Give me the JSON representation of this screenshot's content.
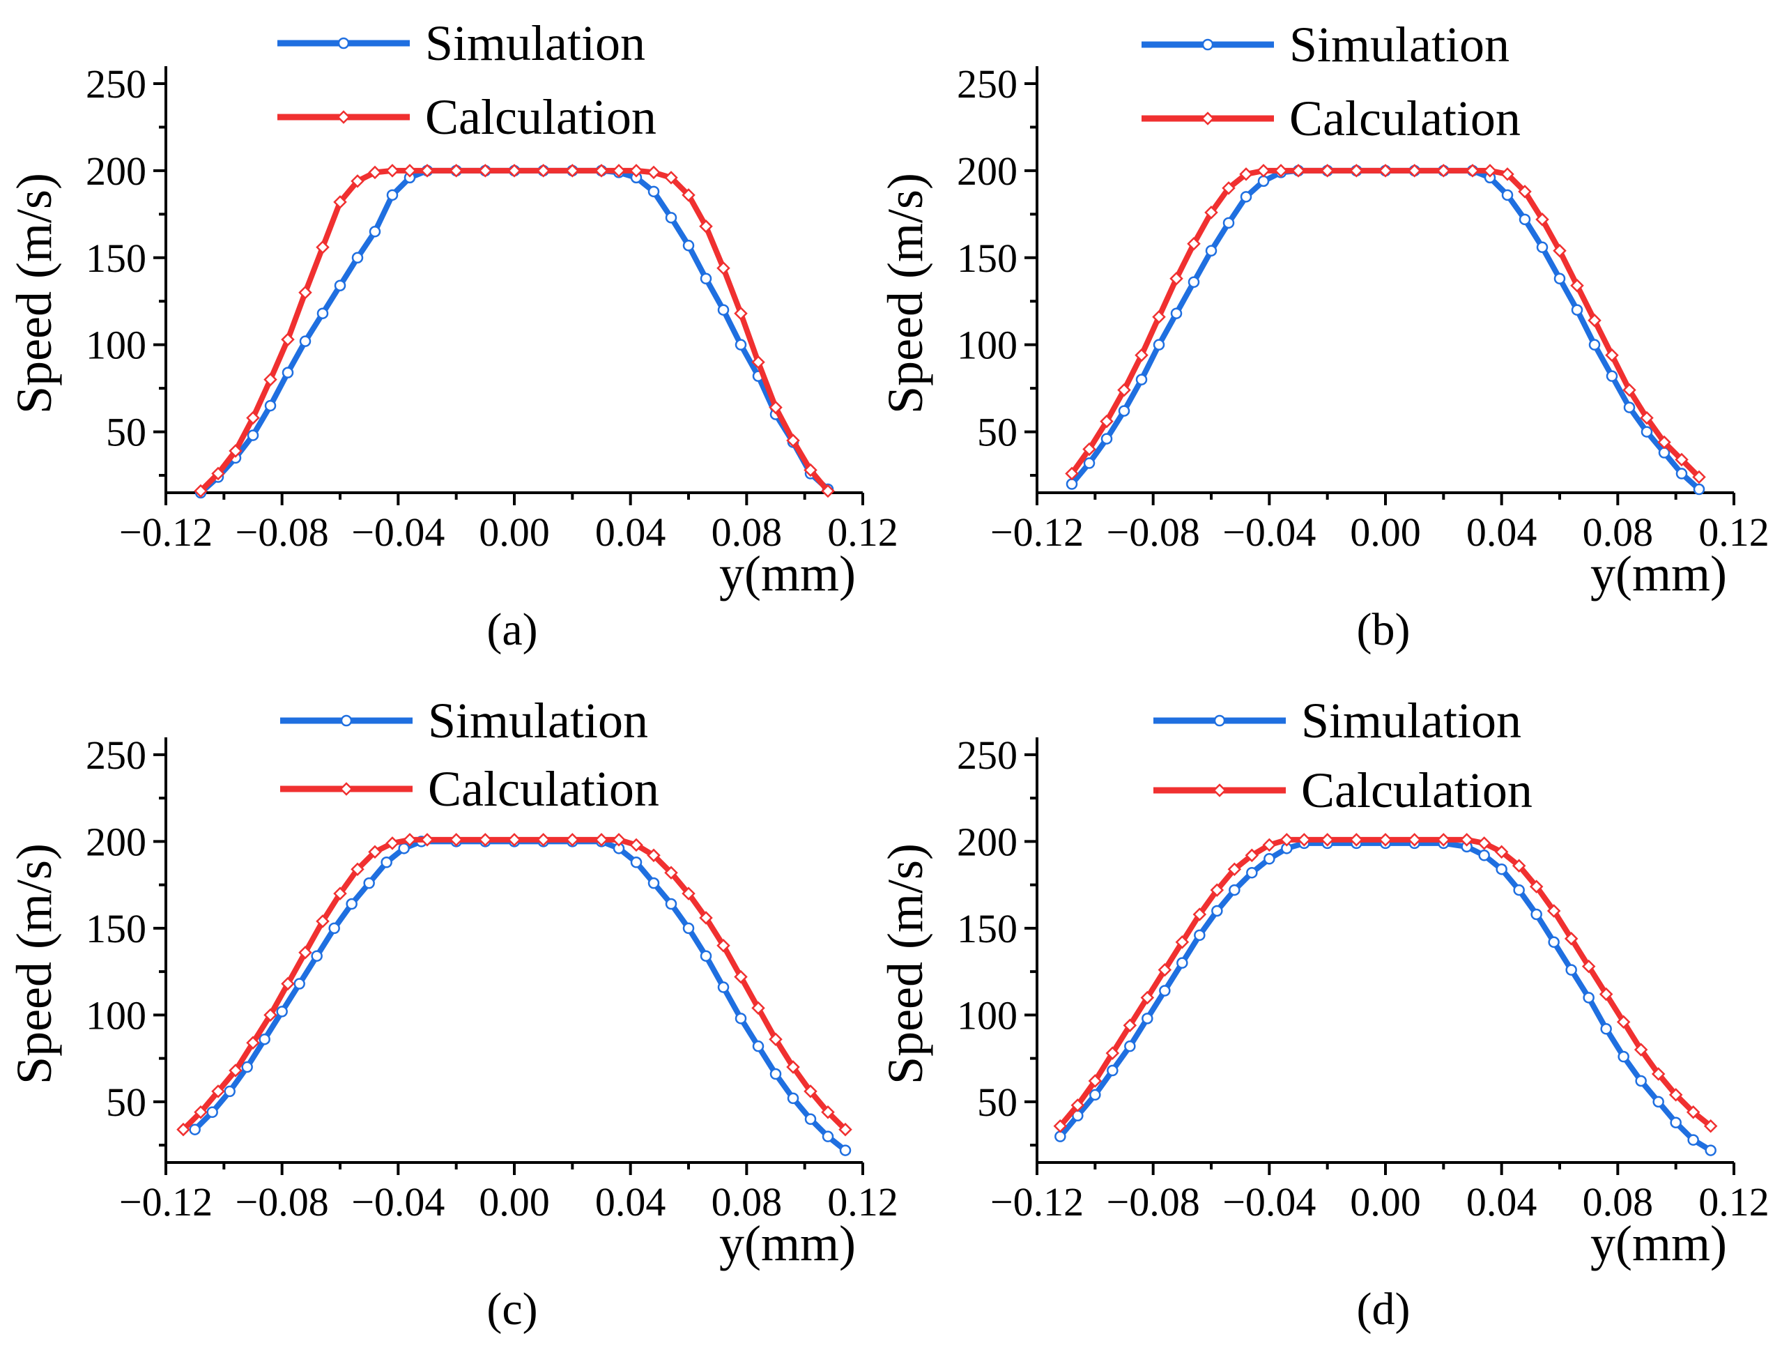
{
  "chart_data": [
    {
      "id": "a",
      "type": "line",
      "caption": "(a)",
      "xlabel": "y(mm)",
      "ylabel": "Speed (m/s)",
      "xlim": [
        -0.12,
        0.12
      ],
      "ylim": [
        15,
        260
      ],
      "xticks": [
        "-0.12",
        "-0.08",
        "-0.04",
        "0.00",
        "0.04",
        "0.08",
        "0.12"
      ],
      "xtick_values": [
        -0.12,
        -0.08,
        -0.04,
        0.0,
        0.04,
        0.08,
        0.12
      ],
      "yticks": [
        "50",
        "100",
        "150",
        "200",
        "250"
      ],
      "ytick_values": [
        50,
        100,
        150,
        200,
        250
      ],
      "series": [
        {
          "name": "Simulation",
          "color": "#1f6fe0",
          "marker": "circle",
          "x": [
            -0.108,
            -0.102,
            -0.096,
            -0.09,
            -0.084,
            -0.078,
            -0.072,
            -0.066,
            -0.06,
            -0.054,
            -0.048,
            -0.042,
            -0.036,
            -0.03,
            -0.02,
            -0.01,
            0.0,
            0.01,
            0.02,
            0.03,
            0.036,
            0.042,
            0.048,
            0.054,
            0.06,
            0.066,
            0.072,
            0.078,
            0.084,
            0.09,
            0.096,
            0.102,
            0.108
          ],
          "y": [
            15,
            24,
            35,
            48,
            65,
            84,
            102,
            118,
            134,
            150,
            165,
            186,
            196,
            200,
            200,
            200,
            200,
            200,
            200,
            200,
            199,
            196,
            188,
            173,
            157,
            138,
            120,
            100,
            82,
            60,
            44,
            26,
            17
          ]
        },
        {
          "name": "Calculation",
          "color": "#f03030",
          "marker": "diamond",
          "x": [
            -0.108,
            -0.102,
            -0.096,
            -0.09,
            -0.084,
            -0.078,
            -0.072,
            -0.066,
            -0.06,
            -0.054,
            -0.048,
            -0.042,
            -0.036,
            -0.03,
            -0.02,
            -0.01,
            0.0,
            0.01,
            0.02,
            0.03,
            0.036,
            0.042,
            0.048,
            0.054,
            0.06,
            0.066,
            0.072,
            0.078,
            0.084,
            0.09,
            0.096,
            0.102,
            0.108
          ],
          "y": [
            16,
            26,
            39,
            58,
            80,
            103,
            130,
            156,
            182,
            194,
            199,
            200,
            200,
            200,
            200,
            200,
            200,
            200,
            200,
            200,
            200,
            200,
            199,
            196,
            186,
            168,
            144,
            118,
            90,
            64,
            45,
            28,
            16
          ]
        }
      ]
    },
    {
      "id": "b",
      "type": "line",
      "caption": "(b)",
      "xlabel": "y(mm)",
      "ylabel": "Speed (m/s)",
      "xlim": [
        -0.12,
        0.12
      ],
      "ylim": [
        15,
        260
      ],
      "xticks": [
        "-0.12",
        "-0.08",
        "-0.04",
        "0.00",
        "0.04",
        "0.08",
        "0.12"
      ],
      "xtick_values": [
        -0.12,
        -0.08,
        -0.04,
        0.0,
        0.04,
        0.08,
        0.12
      ],
      "yticks": [
        "50",
        "100",
        "150",
        "200",
        "250"
      ],
      "ytick_values": [
        50,
        100,
        150,
        200,
        250
      ],
      "series": [
        {
          "name": "Simulation",
          "color": "#1f6fe0",
          "marker": "circle",
          "x": [
            -0.108,
            -0.102,
            -0.096,
            -0.09,
            -0.084,
            -0.078,
            -0.072,
            -0.066,
            -0.06,
            -0.054,
            -0.048,
            -0.042,
            -0.036,
            -0.03,
            -0.02,
            -0.01,
            0.0,
            0.01,
            0.02,
            0.03,
            0.036,
            0.042,
            0.048,
            0.054,
            0.06,
            0.066,
            0.072,
            0.078,
            0.084,
            0.09,
            0.096,
            0.102,
            0.108
          ],
          "y": [
            20,
            32,
            46,
            62,
            80,
            100,
            118,
            136,
            154,
            170,
            185,
            194,
            199,
            200,
            200,
            200,
            200,
            200,
            200,
            200,
            196,
            186,
            172,
            156,
            138,
            120,
            100,
            82,
            64,
            50,
            38,
            26,
            17
          ]
        },
        {
          "name": "Calculation",
          "color": "#f03030",
          "marker": "diamond",
          "x": [
            -0.108,
            -0.102,
            -0.096,
            -0.09,
            -0.084,
            -0.078,
            -0.072,
            -0.066,
            -0.06,
            -0.054,
            -0.048,
            -0.042,
            -0.036,
            -0.03,
            -0.02,
            -0.01,
            0.0,
            0.01,
            0.02,
            0.03,
            0.036,
            0.042,
            0.048,
            0.054,
            0.06,
            0.066,
            0.072,
            0.078,
            0.084,
            0.09,
            0.096,
            0.102,
            0.108
          ],
          "y": [
            26,
            40,
            56,
            74,
            94,
            116,
            138,
            158,
            176,
            190,
            198,
            200,
            200,
            200,
            200,
            200,
            200,
            200,
            200,
            200,
            200,
            198,
            188,
            172,
            154,
            134,
            114,
            94,
            74,
            58,
            44,
            34,
            24
          ]
        }
      ]
    },
    {
      "id": "c",
      "type": "line",
      "caption": "(c)",
      "xlabel": "y(mm)",
      "ylabel": "Speed (m/s)",
      "xlim": [
        -0.12,
        0.12
      ],
      "ylim": [
        15,
        260
      ],
      "xticks": [
        "-0.12",
        "-0.08",
        "-0.04",
        "0.00",
        "0.04",
        "0.08",
        "0.12"
      ],
      "xtick_values": [
        -0.12,
        -0.08,
        -0.04,
        0.0,
        0.04,
        0.08,
        0.12
      ],
      "yticks": [
        "50",
        "100",
        "150",
        "200",
        "250"
      ],
      "ytick_values": [
        50,
        100,
        150,
        200,
        250
      ],
      "series": [
        {
          "name": "Simulation",
          "color": "#1f6fe0",
          "marker": "circle",
          "x": [
            -0.11,
            -0.104,
            -0.098,
            -0.092,
            -0.086,
            -0.08,
            -0.074,
            -0.068,
            -0.062,
            -0.056,
            -0.05,
            -0.044,
            -0.038,
            -0.032,
            -0.02,
            -0.01,
            0.0,
            0.01,
            0.02,
            0.03,
            0.036,
            0.042,
            0.048,
            0.054,
            0.06,
            0.066,
            0.072,
            0.078,
            0.084,
            0.09,
            0.096,
            0.102,
            0.108,
            0.114
          ],
          "y": [
            34,
            44,
            56,
            70,
            86,
            102,
            118,
            134,
            150,
            164,
            176,
            188,
            196,
            200,
            200,
            200,
            200,
            200,
            200,
            200,
            196,
            188,
            176,
            164,
            150,
            134,
            116,
            98,
            82,
            66,
            52,
            40,
            30,
            22
          ]
        },
        {
          "name": "Calculation",
          "color": "#f03030",
          "marker": "diamond",
          "x": [
            -0.114,
            -0.108,
            -0.102,
            -0.096,
            -0.09,
            -0.084,
            -0.078,
            -0.072,
            -0.066,
            -0.06,
            -0.054,
            -0.048,
            -0.042,
            -0.036,
            -0.03,
            -0.02,
            -0.01,
            0.0,
            0.01,
            0.02,
            0.03,
            0.036,
            0.042,
            0.048,
            0.054,
            0.06,
            0.066,
            0.072,
            0.078,
            0.084,
            0.09,
            0.096,
            0.102,
            0.108,
            0.114
          ],
          "y": [
            34,
            44,
            56,
            68,
            84,
            100,
            118,
            136,
            154,
            170,
            184,
            194,
            199,
            201,
            201,
            201,
            201,
            201,
            201,
            201,
            201,
            201,
            198,
            192,
            182,
            170,
            156,
            140,
            122,
            104,
            86,
            70,
            56,
            44,
            34
          ]
        }
      ]
    },
    {
      "id": "d",
      "type": "line",
      "caption": "(d)",
      "xlabel": "y(mm)",
      "ylabel": "Speed (m/s)",
      "xlim": [
        -0.12,
        0.12
      ],
      "ylim": [
        15,
        260
      ],
      "xticks": [
        "-0.12",
        "-0.08",
        "-0.04",
        "0.00",
        "0.04",
        "0.08",
        "0.12"
      ],
      "xtick_values": [
        -0.12,
        -0.08,
        -0.04,
        0.0,
        0.04,
        0.08,
        0.12
      ],
      "yticks": [
        "50",
        "100",
        "150",
        "200",
        "250"
      ],
      "ytick_values": [
        50,
        100,
        150,
        200,
        250
      ],
      "series": [
        {
          "name": "Simulation",
          "color": "#1f6fe0",
          "marker": "circle",
          "x": [
            -0.112,
            -0.106,
            -0.1,
            -0.094,
            -0.088,
            -0.082,
            -0.076,
            -0.07,
            -0.064,
            -0.058,
            -0.052,
            -0.046,
            -0.04,
            -0.034,
            -0.028,
            -0.02,
            -0.01,
            0.0,
            0.01,
            0.02,
            0.028,
            0.034,
            0.04,
            0.046,
            0.052,
            0.058,
            0.064,
            0.07,
            0.076,
            0.082,
            0.088,
            0.094,
            0.1,
            0.106,
            0.112
          ],
          "y": [
            30,
            42,
            54,
            68,
            82,
            98,
            114,
            130,
            146,
            160,
            172,
            182,
            190,
            196,
            199,
            199,
            199,
            199,
            199,
            199,
            197,
            192,
            184,
            172,
            158,
            142,
            126,
            110,
            92,
            76,
            62,
            50,
            38,
            28,
            22
          ]
        },
        {
          "name": "Calculation",
          "color": "#f03030",
          "marker": "diamond",
          "x": [
            -0.112,
            -0.106,
            -0.1,
            -0.094,
            -0.088,
            -0.082,
            -0.076,
            -0.07,
            -0.064,
            -0.058,
            -0.052,
            -0.046,
            -0.04,
            -0.034,
            -0.028,
            -0.02,
            -0.01,
            0.0,
            0.01,
            0.02,
            0.028,
            0.034,
            0.04,
            0.046,
            0.052,
            0.058,
            0.064,
            0.07,
            0.076,
            0.082,
            0.088,
            0.094,
            0.1,
            0.106,
            0.112
          ],
          "y": [
            36,
            48,
            62,
            78,
            94,
            110,
            126,
            142,
            158,
            172,
            184,
            192,
            198,
            201,
            201,
            201,
            201,
            201,
            201,
            201,
            201,
            199,
            194,
            186,
            174,
            160,
            144,
            128,
            112,
            96,
            80,
            66,
            54,
            44,
            36
          ]
        }
      ]
    }
  ]
}
